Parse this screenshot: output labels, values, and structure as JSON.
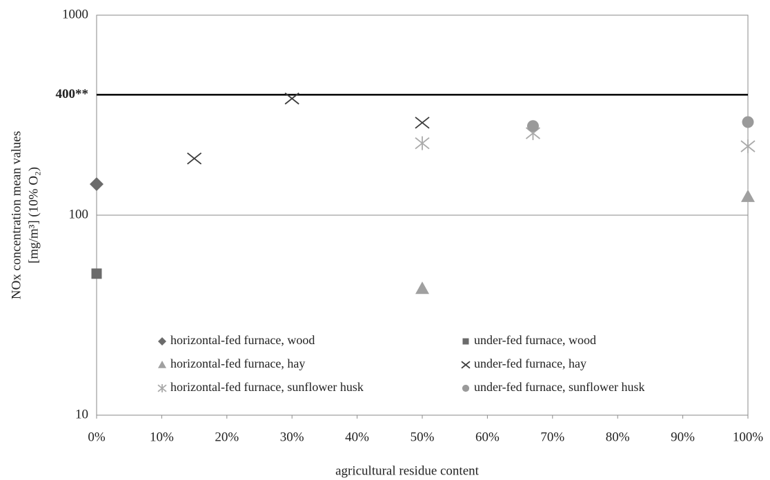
{
  "chart_data": {
    "type": "scatter",
    "x_label": "agricultural residue content",
    "y_label": [
      "NOx concentration mean values",
      "[mg/m³] (10% O₂)"
    ],
    "log_y": true,
    "xlim": [
      0,
      100
    ],
    "ylim": [
      10,
      1000
    ],
    "xticks": [
      {
        "value": 0,
        "label": "0%"
      },
      {
        "value": 10,
        "label": "10%"
      },
      {
        "value": 20,
        "label": "20%"
      },
      {
        "value": 30,
        "label": "30%"
      },
      {
        "value": 40,
        "label": "40%"
      },
      {
        "value": 50,
        "label": "50%"
      },
      {
        "value": 60,
        "label": "60%"
      },
      {
        "value": 70,
        "label": "70%"
      },
      {
        "value": 80,
        "label": "80%"
      },
      {
        "value": 90,
        "label": "90%"
      },
      {
        "value": 100,
        "label": "100%"
      }
    ],
    "yticks": [
      10,
      100,
      {
        "value": 400,
        "label": "400**"
      },
      1000
    ],
    "series": [
      {
        "name": "horizontal-fed furnace, wood",
        "marker": "diamond",
        "color": "#6b6b6b",
        "x": [
          0
        ],
        "values": [
          143
        ]
      },
      {
        "name": "under-fed furnace, wood",
        "marker": "square",
        "color": "#6b6b6b",
        "x": [
          0
        ],
        "values": [
          51
        ]
      },
      {
        "name": "horizontal-fed furnace, hay",
        "marker": "triangle",
        "color": "#a0a0a0",
        "x": [
          50,
          100
        ],
        "values": [
          43,
          124
        ]
      },
      {
        "name": "under-fed furnace, hay",
        "marker": "x",
        "color": "#3c3c3c",
        "x": [
          15,
          30,
          50
        ],
        "values": [
          192,
          383,
          290
        ]
      },
      {
        "name": "horizontal-fed furnace, sunflower husk",
        "marker": "asterisk",
        "color": "#aaaaaa",
        "x": [
          50,
          67,
          100
        ],
        "values": [
          229,
          257,
          221
        ]
      },
      {
        "name": "under-fed furnace, sunflower husk",
        "marker": "circle",
        "color": "#9a9a9a",
        "x": [
          67,
          100
        ],
        "values": [
          279,
          292
        ]
      }
    ]
  }
}
